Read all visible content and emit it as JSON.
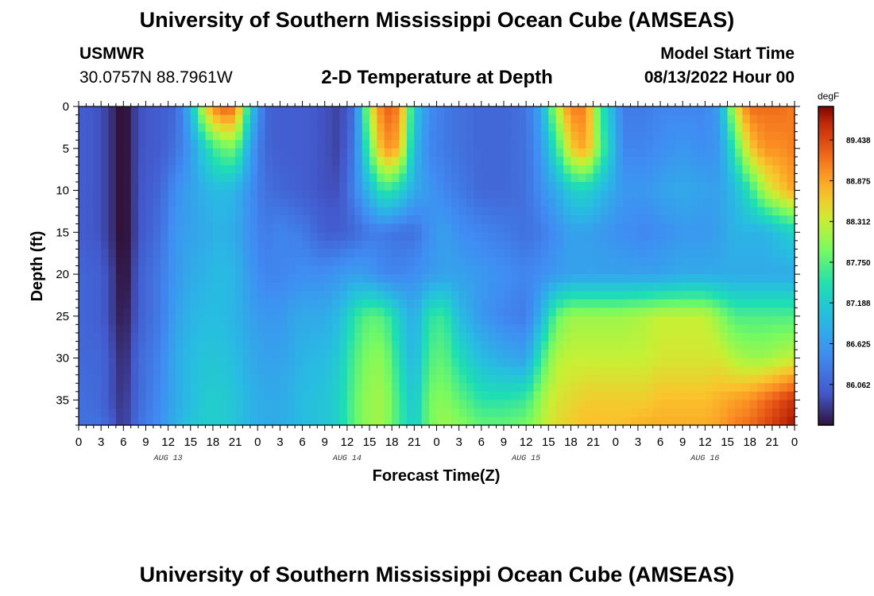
{
  "page": {
    "title": "University of Southern Mississippi Ocean Cube (AMSEAS)",
    "footer_title": "University of Southern Mississippi Ocean Cube (AMSEAS)",
    "station": {
      "id": "USMWR",
      "coords": "30.0757N  88.7961W"
    },
    "model_start": {
      "label": "Model Start Time",
      "value": "08/13/2022 Hour 00"
    }
  },
  "chart_data": {
    "type": "heatmap",
    "title": "2-D Temperature at Depth",
    "xlabel": "Forecast Time(Z)",
    "ylabel": "Depth (ft)",
    "x_ticks": [
      "0",
      "3",
      "6",
      "9",
      "12",
      "15",
      "18",
      "21",
      "0",
      "3",
      "6",
      "9",
      "12",
      "15",
      "18",
      "21",
      "0",
      "3",
      "6",
      "9",
      "12",
      "15",
      "18",
      "21",
      "0",
      "3",
      "6",
      "9",
      "12",
      "15",
      "18",
      "21",
      "0"
    ],
    "date_labels": [
      {
        "label": "AUG 13",
        "hour": 12
      },
      {
        "label": "AUG 14",
        "hour": 36
      },
      {
        "label": "AUG 15",
        "hour": 60
      },
      {
        "label": "AUG 16",
        "hour": 84
      }
    ],
    "xlim": [
      0,
      96
    ],
    "y_ticks": [
      "0",
      "5",
      "10",
      "15",
      "20",
      "25",
      "30",
      "35"
    ],
    "ylim": [
      0,
      38
    ],
    "colorbar": {
      "unit": "degF",
      "tick_labels": [
        "89.438",
        "88.875",
        "88.312",
        "87.750",
        "87.188",
        "86.625",
        "86.062"
      ],
      "tick_values": [
        89.438,
        88.875,
        88.312,
        87.75,
        87.188,
        86.625,
        86.062
      ],
      "range": [
        85.5,
        89.9
      ]
    },
    "hours": [
      0,
      3,
      5,
      6,
      8,
      11,
      13,
      15,
      17,
      19,
      21,
      23,
      25,
      27,
      30,
      33,
      35,
      37,
      39,
      41,
      43,
      45,
      47,
      49,
      51,
      54,
      57,
      60,
      62,
      64,
      66,
      68,
      70,
      73,
      76,
      78,
      81,
      84,
      86,
      88,
      90,
      92,
      94,
      96
    ],
    "depths_ft": [
      0,
      5,
      10,
      15,
      20,
      25,
      30,
      35,
      38
    ],
    "temperature_degF": [
      [
        86.0,
        85.9,
        85.6,
        85.4,
        85.9,
        86.0,
        86.1,
        86.9,
        88.6,
        89.3,
        89.2,
        87.2,
        86.1,
        86.0,
        86.0,
        85.9,
        85.8,
        86.2,
        88.3,
        89.3,
        89.1,
        87.2,
        86.5,
        86.3,
        86.2,
        86.1,
        86.1,
        86.2,
        86.8,
        88.2,
        89.1,
        89.1,
        87.6,
        86.3,
        86.3,
        86.4,
        86.4,
        86.4,
        86.7,
        88.4,
        89.2,
        89.2,
        89.2,
        89.1
      ],
      [
        86.0,
        85.9,
        85.6,
        85.4,
        85.9,
        86.0,
        86.2,
        86.6,
        87.3,
        87.8,
        87.9,
        86.7,
        86.1,
        86.0,
        86.0,
        85.9,
        85.8,
        86.3,
        87.8,
        89.0,
        88.8,
        87.0,
        86.4,
        86.3,
        86.2,
        86.1,
        86.1,
        86.2,
        86.6,
        87.5,
        88.6,
        88.9,
        87.8,
        86.4,
        86.4,
        86.5,
        86.6,
        86.5,
        86.6,
        87.6,
        88.6,
        89.0,
        89.0,
        89.1
      ],
      [
        86.0,
        85.9,
        85.6,
        85.4,
        85.9,
        86.1,
        86.5,
        86.7,
        86.9,
        87.0,
        86.9,
        86.5,
        86.2,
        86.1,
        86.0,
        85.9,
        85.9,
        86.4,
        87.0,
        87.6,
        87.3,
        86.8,
        86.6,
        86.4,
        86.3,
        86.1,
        86.1,
        86.2,
        86.5,
        86.8,
        87.2,
        87.3,
        87.0,
        86.6,
        86.6,
        86.7,
        86.8,
        86.7,
        86.7,
        87.0,
        87.5,
        88.2,
        88.6,
        88.9
      ],
      [
        86.0,
        85.9,
        85.6,
        85.4,
        85.9,
        86.2,
        86.6,
        86.7,
        86.8,
        86.9,
        86.8,
        86.5,
        86.3,
        86.4,
        86.3,
        86.0,
        86.0,
        86.1,
        86.3,
        86.3,
        86.2,
        86.2,
        86.5,
        86.7,
        86.5,
        86.4,
        86.3,
        86.2,
        86.3,
        86.5,
        86.7,
        86.7,
        86.6,
        86.5,
        86.4,
        86.5,
        86.6,
        86.6,
        86.7,
        86.9,
        86.9,
        86.9,
        87.1,
        87.3
      ],
      [
        86.1,
        86.0,
        85.7,
        85.4,
        86.0,
        86.3,
        86.6,
        86.8,
        86.9,
        87.0,
        86.9,
        86.6,
        86.4,
        86.4,
        86.5,
        86.5,
        86.6,
        86.7,
        86.6,
        86.4,
        86.4,
        86.5,
        86.6,
        86.7,
        86.7,
        86.6,
        86.5,
        86.4,
        86.5,
        86.6,
        86.7,
        86.7,
        86.7,
        86.7,
        86.7,
        86.7,
        86.8,
        86.8,
        86.8,
        86.8,
        86.8,
        86.8,
        86.8,
        86.8
      ],
      [
        86.1,
        86.0,
        85.7,
        85.5,
        86.0,
        86.3,
        86.7,
        86.9,
        87.0,
        87.0,
        86.9,
        86.7,
        86.6,
        86.6,
        86.8,
        86.8,
        87.0,
        87.5,
        87.8,
        87.7,
        87.2,
        86.8,
        87.5,
        87.6,
        87.0,
        86.6,
        86.4,
        86.3,
        86.9,
        87.8,
        88.1,
        88.1,
        88.1,
        88.1,
        88.2,
        88.3,
        88.3,
        88.3,
        88.0,
        87.7,
        87.7,
        87.7,
        87.7,
        87.7
      ],
      [
        86.1,
        86.1,
        85.8,
        85.6,
        86.1,
        86.4,
        86.8,
        87.0,
        87.1,
        87.1,
        87.0,
        86.8,
        86.7,
        86.7,
        86.9,
        87.0,
        87.2,
        87.7,
        88.0,
        88.0,
        87.4,
        86.9,
        87.7,
        87.8,
        87.4,
        87.0,
        86.8,
        86.7,
        87.6,
        88.2,
        88.3,
        88.3,
        88.3,
        88.3,
        88.3,
        88.4,
        88.4,
        88.4,
        88.4,
        88.2,
        88.1,
        88.1,
        88.2,
        88.3
      ],
      [
        86.2,
        86.1,
        85.8,
        85.7,
        86.1,
        86.5,
        86.8,
        87.0,
        87.2,
        87.2,
        87.1,
        86.9,
        86.8,
        86.8,
        87.0,
        87.1,
        87.3,
        87.8,
        88.1,
        88.1,
        87.6,
        87.1,
        87.9,
        88.0,
        87.8,
        87.5,
        87.5,
        87.6,
        88.1,
        88.4,
        88.5,
        88.6,
        88.6,
        88.6,
        88.6,
        88.7,
        88.7,
        88.7,
        88.8,
        88.9,
        89.0,
        89.2,
        89.4,
        89.6
      ],
      [
        86.2,
        86.2,
        85.9,
        85.7,
        86.2,
        86.5,
        86.9,
        87.1,
        87.2,
        87.2,
        87.1,
        86.9,
        86.8,
        86.8,
        87.0,
        87.1,
        87.3,
        87.8,
        88.1,
        88.1,
        87.6,
        87.2,
        87.9,
        88.1,
        88.0,
        87.8,
        87.8,
        87.9,
        88.2,
        88.5,
        88.6,
        88.7,
        88.7,
        88.7,
        88.8,
        88.8,
        88.8,
        88.8,
        88.9,
        89.1,
        89.2,
        89.4,
        89.6,
        89.8
      ]
    ]
  }
}
